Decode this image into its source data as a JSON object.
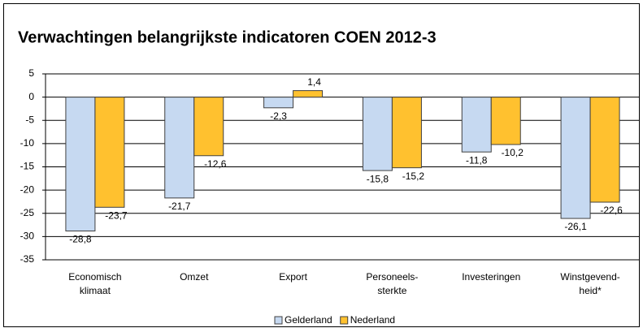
{
  "chart_data": {
    "type": "bar",
    "title": "Verwachtingen belangrijkste indicatoren COEN 2012-3",
    "categories": [
      [
        "Economisch",
        "klimaat"
      ],
      [
        "Omzet"
      ],
      [
        "Export"
      ],
      [
        "Personeels-",
        "sterkte"
      ],
      [
        "Investeringen"
      ],
      [
        "Winstgevend-",
        "heid*"
      ]
    ],
    "series": [
      {
        "name": "Gelderland",
        "color": "#c6d9f1",
        "values": [
          -28.8,
          -21.7,
          -2.3,
          -15.8,
          -11.8,
          -26.1
        ],
        "value_labels": [
          "-28,8",
          "-21,7",
          "-2,3",
          "-15,8",
          "-11,8",
          "-26,1"
        ]
      },
      {
        "name": "Nederland",
        "color": "#ffc12f",
        "values": [
          -23.7,
          -12.6,
          1.4,
          -15.2,
          -10.2,
          -22.6
        ],
        "value_labels": [
          "-23,7",
          "-12,6",
          "1,4",
          "-15,2",
          "-10,2",
          "-22,6"
        ]
      }
    ],
    "ylim": [
      -35,
      5
    ],
    "yticks": [
      5,
      0,
      -5,
      -10,
      -15,
      -20,
      -25,
      -30,
      -35
    ],
    "grid": true,
    "legend": "bottom"
  }
}
